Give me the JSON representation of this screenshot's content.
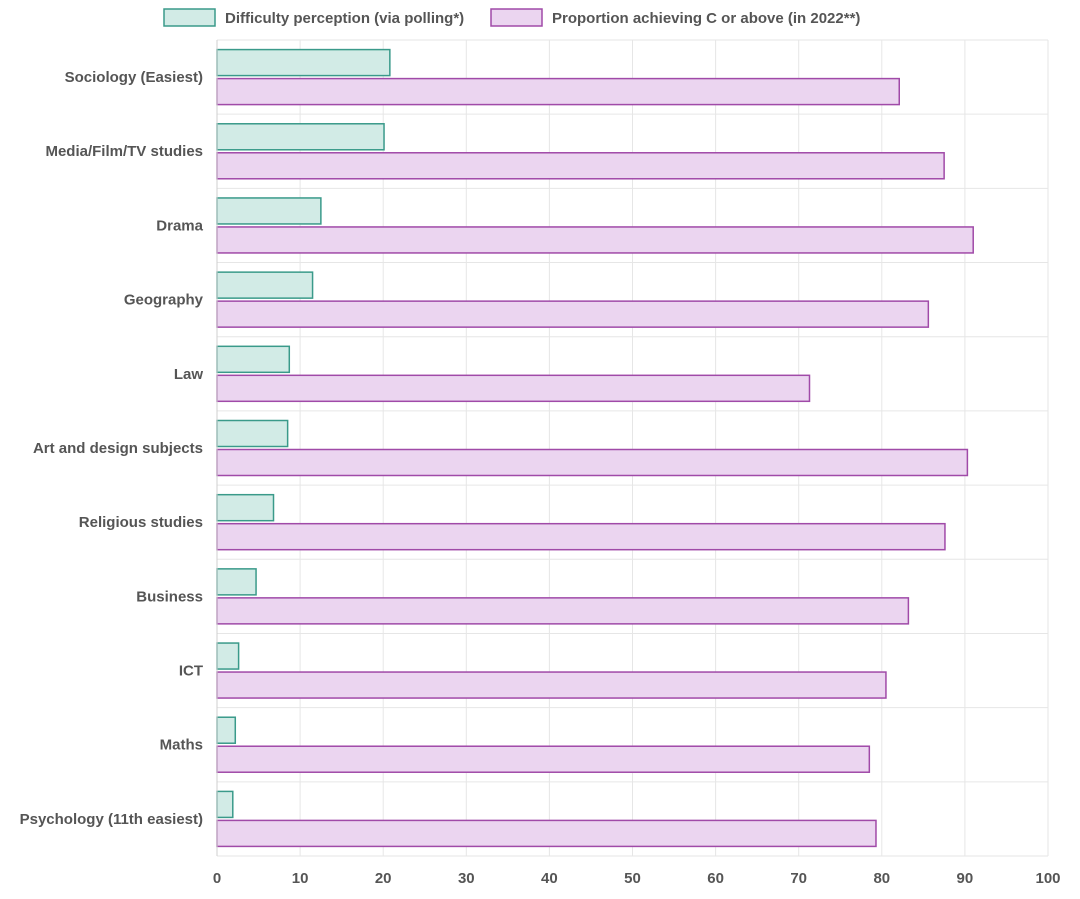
{
  "chart_data": {
    "type": "bar",
    "orientation": "horizontal",
    "categories": [
      "Sociology (Easiest)",
      "Media/Film/TV studies",
      "Drama",
      "Geography",
      "Law",
      "Art and design subjects",
      "Religious studies",
      "Business",
      "ICT",
      "Maths",
      "Psychology (11th easiest)"
    ],
    "series": [
      {
        "name": "Difficulty perception (via polling*)",
        "color": "#d2ebe6",
        "stroke": "#3a9a8a",
        "values": [
          20.8,
          20.1,
          12.5,
          11.5,
          8.7,
          8.5,
          6.8,
          4.7,
          2.6,
          2.2,
          1.9
        ]
      },
      {
        "name": "Proportion achieving C or above (in 2022**)",
        "color": "#ebd5f0",
        "stroke": "#a04aa8",
        "values": [
          82.1,
          87.5,
          91.0,
          85.6,
          71.3,
          90.3,
          87.6,
          83.2,
          80.5,
          78.5,
          79.3
        ]
      }
    ],
    "xlim": [
      0,
      100
    ],
    "xticks": [
      0,
      10,
      20,
      30,
      40,
      50,
      60,
      70,
      80,
      90,
      100
    ],
    "title": "",
    "xlabel": "",
    "ylabel": "",
    "grid": true,
    "legend_position": "top-center"
  }
}
